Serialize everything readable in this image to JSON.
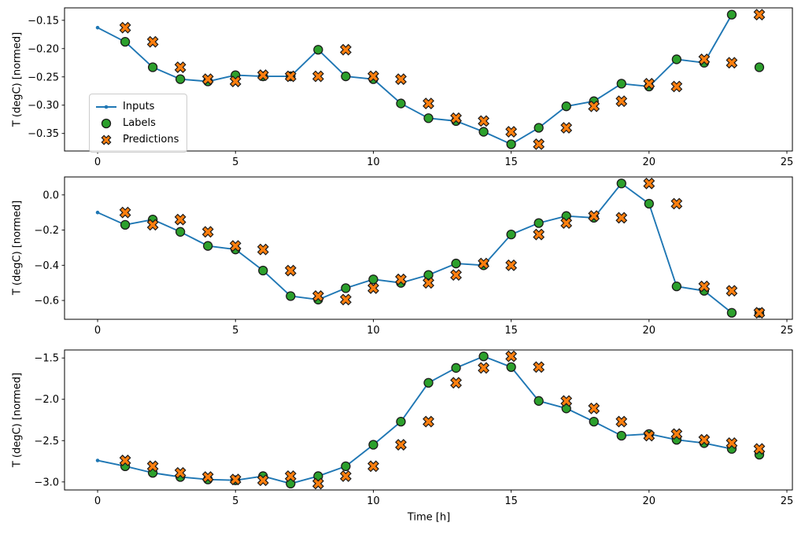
{
  "figure": {
    "xlabel": "Time [h]",
    "ylabel": "T (degC) [normed]",
    "colors": {
      "inputs_line": "#1f77b4",
      "labels_fill": "#2ca02c",
      "predictions_fill": "#ff7f0e",
      "marker_edge": "#1a1a1a",
      "spine": "#000000"
    },
    "legend": {
      "position": "upper-left-of-first-subplot",
      "items": [
        {
          "label": "Inputs",
          "marker": "line-with-dot-icon",
          "color": "#1f77b4"
        },
        {
          "label": "Labels",
          "marker": "circle-icon",
          "color": "#2ca02c"
        },
        {
          "label": "Predictions",
          "marker": "x-cross-icon",
          "color": "#ff7f0e"
        }
      ]
    }
  },
  "chart_data": [
    {
      "type": "line",
      "title": "",
      "xlabel": "",
      "ylabel": "T (degC) [normed]",
      "grid": false,
      "legend": true,
      "xlim": [
        -1.2,
        25.2
      ],
      "ylim": [
        -0.381,
        -0.128
      ],
      "xticks": [
        0,
        5,
        10,
        15,
        20,
        25
      ],
      "xtick_labels": [
        "0",
        "5",
        "10",
        "15",
        "20",
        "25"
      ],
      "yticks": [
        -0.15,
        -0.2,
        -0.25,
        -0.3,
        -0.35
      ],
      "ytick_labels": [
        "−0.15",
        "−0.20",
        "−0.25",
        "−0.30",
        "−0.35"
      ],
      "series": [
        {
          "name": "Inputs",
          "style": "line",
          "x": [
            0,
            1,
            2,
            3,
            4,
            5,
            6,
            7,
            8,
            9,
            10,
            11,
            12,
            13,
            14,
            15,
            16,
            17,
            18,
            19,
            20,
            21,
            22,
            23
          ],
          "y": [
            -0.163,
            -0.188,
            -0.233,
            -0.254,
            -0.258,
            -0.247,
            -0.249,
            -0.249,
            -0.202,
            -0.249,
            -0.254,
            -0.297,
            -0.323,
            -0.328,
            -0.347,
            -0.369,
            -0.34,
            -0.302,
            -0.293,
            -0.262,
            -0.267,
            -0.219,
            -0.225,
            -0.14
          ]
        },
        {
          "name": "Labels",
          "style": "scatter-circle",
          "x": [
            1,
            2,
            3,
            4,
            5,
            6,
            7,
            8,
            9,
            10,
            11,
            12,
            13,
            14,
            15,
            16,
            17,
            18,
            19,
            20,
            21,
            22,
            23,
            24
          ],
          "y": [
            -0.188,
            -0.233,
            -0.254,
            -0.258,
            -0.247,
            -0.249,
            -0.249,
            -0.202,
            -0.249,
            -0.254,
            -0.297,
            -0.323,
            -0.328,
            -0.347,
            -0.369,
            -0.34,
            -0.302,
            -0.293,
            -0.262,
            -0.267,
            -0.219,
            -0.225,
            -0.14,
            -0.233
          ]
        },
        {
          "name": "Predictions",
          "style": "scatter-x",
          "x": [
            1,
            2,
            3,
            4,
            5,
            6,
            7,
            8,
            9,
            10,
            11,
            12,
            13,
            14,
            15,
            16,
            17,
            18,
            19,
            20,
            21,
            22,
            23,
            24
          ],
          "y": [
            -0.163,
            -0.188,
            -0.233,
            -0.254,
            -0.258,
            -0.247,
            -0.249,
            -0.249,
            -0.202,
            -0.249,
            -0.254,
            -0.297,
            -0.323,
            -0.328,
            -0.347,
            -0.369,
            -0.34,
            -0.302,
            -0.293,
            -0.262,
            -0.267,
            -0.219,
            -0.225,
            -0.14
          ]
        }
      ]
    },
    {
      "type": "line",
      "title": "",
      "xlabel": "",
      "ylabel": "T (degC) [normed]",
      "grid": false,
      "legend": false,
      "xlim": [
        -1.2,
        25.2
      ],
      "ylim": [
        -0.707,
        0.102
      ],
      "xticks": [
        0,
        5,
        10,
        15,
        20,
        25
      ],
      "xtick_labels": [
        "0",
        "5",
        "10",
        "15",
        "20",
        "25"
      ],
      "yticks": [
        0.0,
        -0.2,
        -0.4,
        -0.6
      ],
      "ytick_labels": [
        "0.0",
        "−0.2",
        "−0.4",
        "−0.6"
      ],
      "series": [
        {
          "name": "Inputs",
          "style": "line",
          "x": [
            0,
            1,
            2,
            3,
            4,
            5,
            6,
            7,
            8,
            9,
            10,
            11,
            12,
            13,
            14,
            15,
            16,
            17,
            18,
            19,
            20,
            21,
            22,
            23
          ],
          "y": [
            -0.1,
            -0.17,
            -0.14,
            -0.21,
            -0.29,
            -0.31,
            -0.43,
            -0.575,
            -0.595,
            -0.53,
            -0.48,
            -0.5,
            -0.455,
            -0.39,
            -0.4,
            -0.225,
            -0.16,
            -0.12,
            -0.13,
            0.065,
            -0.05,
            -0.52,
            -0.545,
            -0.67
          ]
        },
        {
          "name": "Labels",
          "style": "scatter-circle",
          "x": [
            1,
            2,
            3,
            4,
            5,
            6,
            7,
            8,
            9,
            10,
            11,
            12,
            13,
            14,
            15,
            16,
            17,
            18,
            19,
            20,
            21,
            22,
            23,
            24
          ],
          "y": [
            -0.17,
            -0.14,
            -0.21,
            -0.29,
            -0.31,
            -0.43,
            -0.575,
            -0.595,
            -0.53,
            -0.48,
            -0.5,
            -0.455,
            -0.39,
            -0.4,
            -0.225,
            -0.16,
            -0.12,
            -0.13,
            0.065,
            -0.05,
            -0.52,
            -0.545,
            -0.67,
            -0.67
          ]
        },
        {
          "name": "Predictions",
          "style": "scatter-x",
          "x": [
            1,
            2,
            3,
            4,
            5,
            6,
            7,
            8,
            9,
            10,
            11,
            12,
            13,
            14,
            15,
            16,
            17,
            18,
            19,
            20,
            21,
            22,
            23,
            24
          ],
          "y": [
            -0.1,
            -0.17,
            -0.14,
            -0.21,
            -0.29,
            -0.31,
            -0.43,
            -0.575,
            -0.595,
            -0.53,
            -0.48,
            -0.5,
            -0.455,
            -0.39,
            -0.4,
            -0.225,
            -0.16,
            -0.12,
            -0.13,
            0.065,
            -0.05,
            -0.52,
            -0.545,
            -0.67
          ]
        }
      ]
    },
    {
      "type": "line",
      "title": "",
      "xlabel": "Time [h]",
      "ylabel": "T (degC) [normed]",
      "grid": false,
      "legend": false,
      "xlim": [
        -1.2,
        25.2
      ],
      "ylim": [
        -3.097,
        -1.403
      ],
      "xticks": [
        0,
        5,
        10,
        15,
        20,
        25
      ],
      "xtick_labels": [
        "0",
        "5",
        "10",
        "15",
        "20",
        "25"
      ],
      "yticks": [
        -1.5,
        -2.0,
        -2.5,
        -3.0
      ],
      "ytick_labels": [
        "−1.5",
        "−2.0",
        "−2.5",
        "−3.0"
      ],
      "series": [
        {
          "name": "Inputs",
          "style": "line",
          "x": [
            0,
            1,
            2,
            3,
            4,
            5,
            6,
            7,
            8,
            9,
            10,
            11,
            12,
            13,
            14,
            15,
            16,
            17,
            18,
            19,
            20,
            21,
            22,
            23
          ],
          "y": [
            -2.74,
            -2.81,
            -2.89,
            -2.94,
            -2.97,
            -2.98,
            -2.93,
            -3.02,
            -2.93,
            -2.81,
            -2.55,
            -2.27,
            -1.8,
            -1.62,
            -1.48,
            -1.61,
            -2.02,
            -2.11,
            -2.27,
            -2.44,
            -2.42,
            -2.49,
            -2.53,
            -2.6
          ]
        },
        {
          "name": "Labels",
          "style": "scatter-circle",
          "x": [
            1,
            2,
            3,
            4,
            5,
            6,
            7,
            8,
            9,
            10,
            11,
            12,
            13,
            14,
            15,
            16,
            17,
            18,
            19,
            20,
            21,
            22,
            23,
            24
          ],
          "y": [
            -2.81,
            -2.89,
            -2.94,
            -2.97,
            -2.98,
            -2.93,
            -3.02,
            -2.93,
            -2.81,
            -2.55,
            -2.27,
            -1.8,
            -1.62,
            -1.48,
            -1.61,
            -2.02,
            -2.11,
            -2.27,
            -2.44,
            -2.42,
            -2.49,
            -2.53,
            -2.6,
            -2.67
          ]
        },
        {
          "name": "Predictions",
          "style": "scatter-x",
          "x": [
            1,
            2,
            3,
            4,
            5,
            6,
            7,
            8,
            9,
            10,
            11,
            12,
            13,
            14,
            15,
            16,
            17,
            18,
            19,
            20,
            21,
            22,
            23,
            24
          ],
          "y": [
            -2.74,
            -2.81,
            -2.89,
            -2.94,
            -2.97,
            -2.98,
            -2.93,
            -3.02,
            -2.93,
            -2.81,
            -2.55,
            -2.27,
            -1.8,
            -1.62,
            -1.48,
            -1.61,
            -2.02,
            -2.11,
            -2.27,
            -2.44,
            -2.42,
            -2.49,
            -2.53,
            -2.6
          ]
        }
      ]
    }
  ]
}
